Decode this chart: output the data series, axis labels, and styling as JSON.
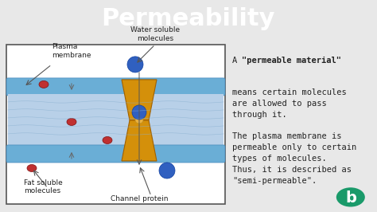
{
  "title": "Permeability",
  "title_bg": "#3a87c8",
  "title_color": "white",
  "bg_color": "#e8e8e8",
  "diagram_bg": "white",
  "text_right_1_plain": "A ",
  "text_right_1_bold": "\"permeable material\"",
  "text_right_2": "means certain molecules\nare allowed to pass\nthrough it.",
  "text_right_3": "The plasma membrane is\npermeable only to certain\ntypes of molecules.\nThus, it is described as\n\"semi-permeable\".",
  "label_plasma": "Plasma\nmembrane",
  "label_fat": "Fat soluble\nmolecules",
  "label_water": "Water soluble\nmolecules",
  "label_channel": "Channel protein",
  "membrane_color_top": "#7ab8d8",
  "membrane_color_mid": "#b0c8e8",
  "protein_color": "#d4900a",
  "fat_mol_color": "#c03030",
  "water_mol_color": "#3060c0"
}
